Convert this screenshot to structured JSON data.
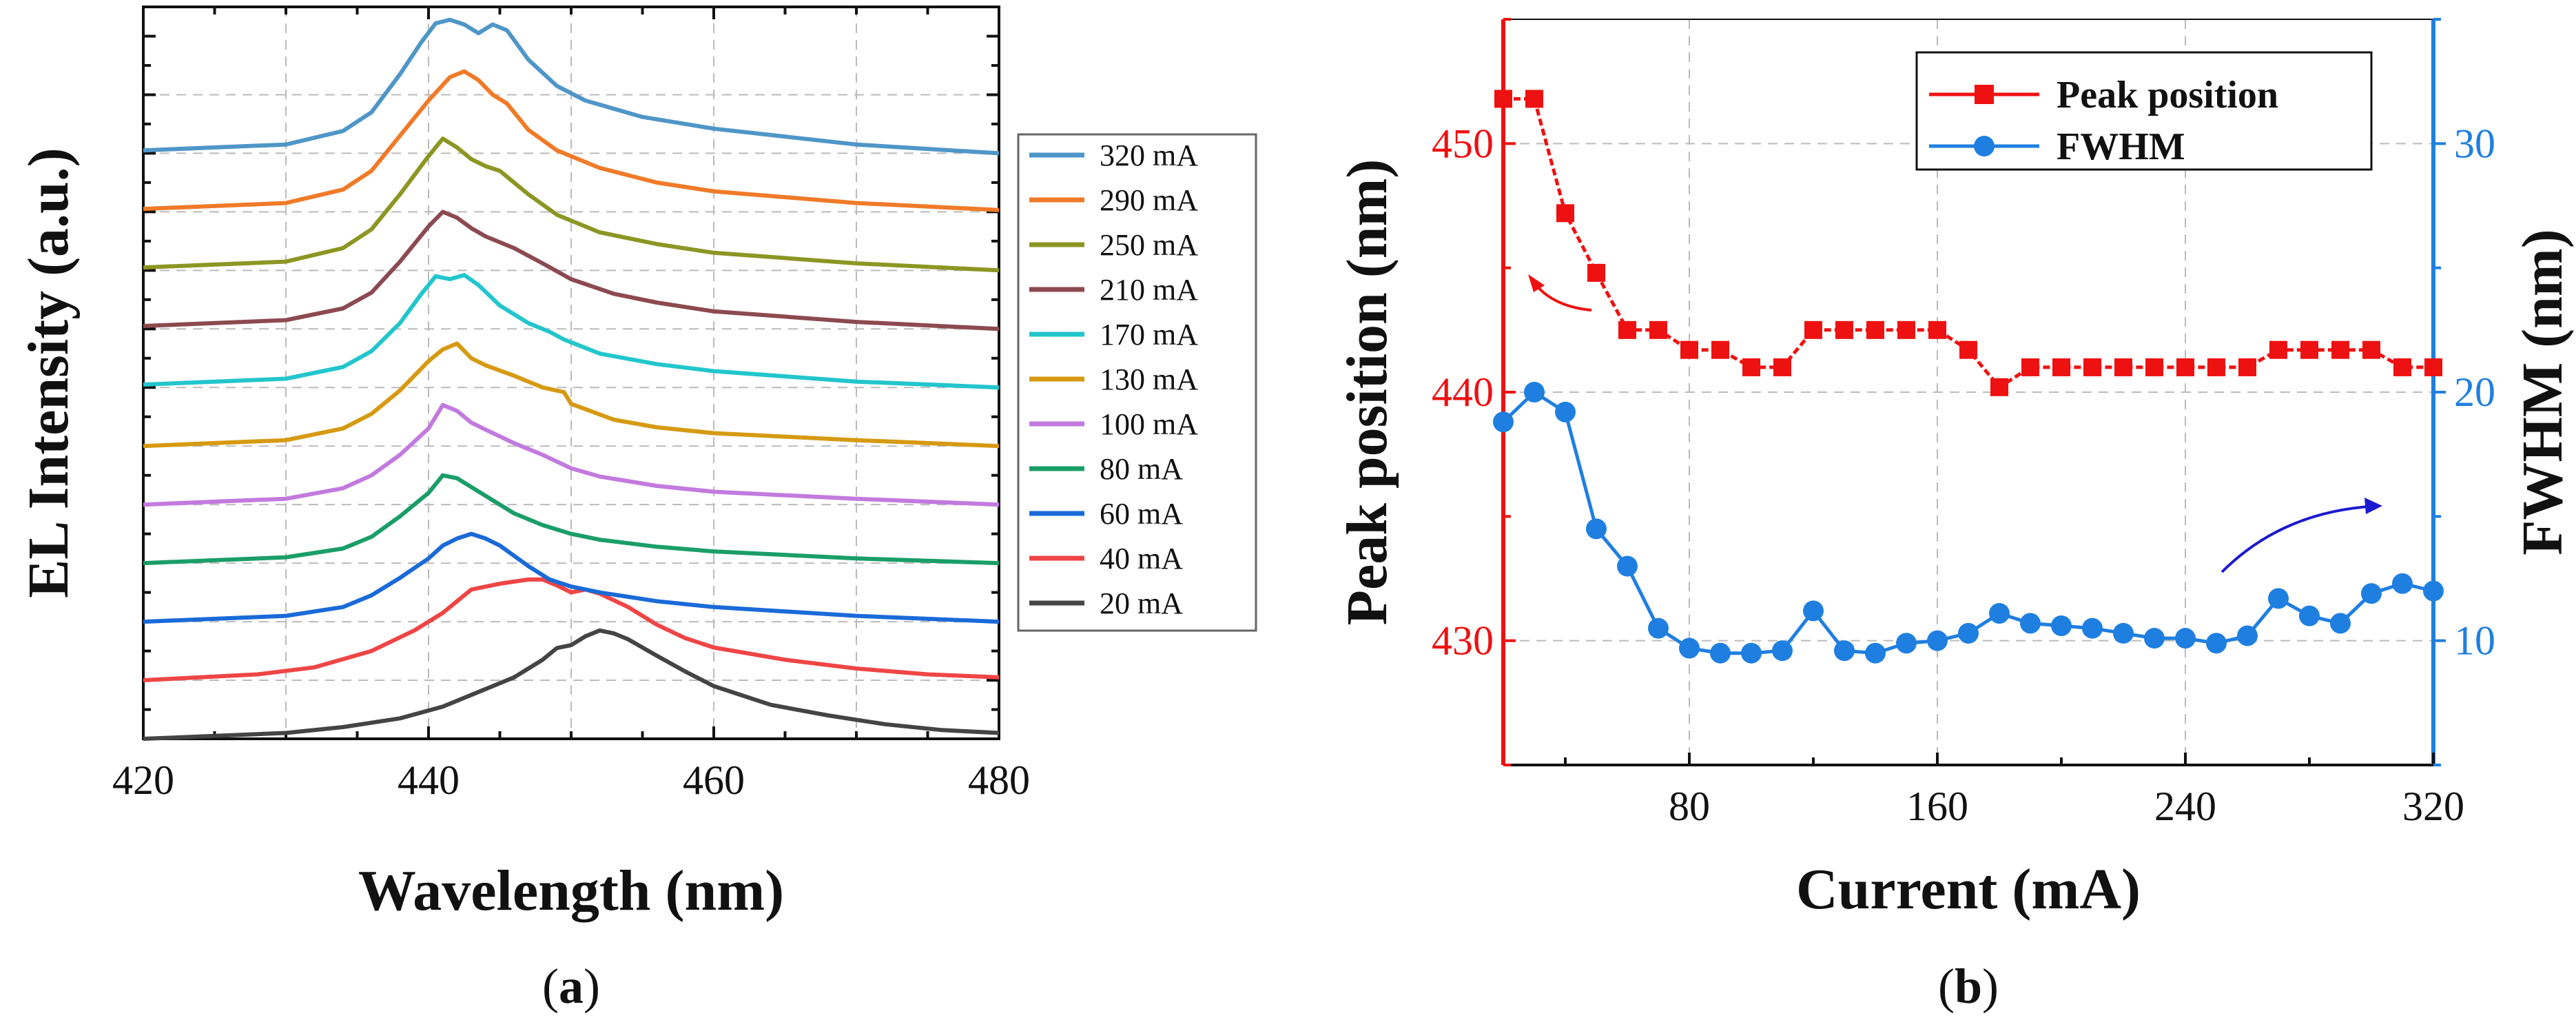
{
  "chart_data": [
    {
      "panel_label": "(a)",
      "panel_letter": "a",
      "type": "line",
      "title": "",
      "xlabel": "Wavelength (nm)",
      "ylabel": "EL Intensity (a.u.)",
      "xlim": [
        420,
        480
      ],
      "ylim": [
        0,
        12.5
      ],
      "xticks": [
        420,
        440,
        460,
        480
      ],
      "grid": true,
      "legend_position": "right",
      "series": [
        {
          "name": "320 mA",
          "color": "#4f96c8",
          "offset": 10,
          "points": [
            [
              420,
              0.05
            ],
            [
              430,
              0.15
            ],
            [
              434,
              0.38
            ],
            [
              436,
              0.7
            ],
            [
              438,
              1.35
            ],
            [
              439.5,
              1.9
            ],
            [
              440.5,
              2.22
            ],
            [
              441.5,
              2.28
            ],
            [
              442.5,
              2.2
            ],
            [
              443.5,
              2.05
            ],
            [
              444.5,
              2.2
            ],
            [
              445.5,
              2.1
            ],
            [
              447,
              1.6
            ],
            [
              449,
              1.15
            ],
            [
              451,
              0.9
            ],
            [
              455,
              0.62
            ],
            [
              460,
              0.42
            ],
            [
              470,
              0.15
            ],
            [
              480,
              0.0
            ]
          ]
        },
        {
          "name": "290 mA",
          "color": "#f07a28",
          "offset": 9,
          "points": [
            [
              420,
              0.05
            ],
            [
              430,
              0.15
            ],
            [
              434,
              0.38
            ],
            [
              436,
              0.7
            ],
            [
              438,
              1.3
            ],
            [
              440,
              1.9
            ],
            [
              441.5,
              2.3
            ],
            [
              442.5,
              2.4
            ],
            [
              443.5,
              2.25
            ],
            [
              444.5,
              2.0
            ],
            [
              445.5,
              1.85
            ],
            [
              447,
              1.4
            ],
            [
              449,
              1.05
            ],
            [
              452,
              0.75
            ],
            [
              456,
              0.5
            ],
            [
              460,
              0.35
            ],
            [
              470,
              0.15
            ],
            [
              480,
              0.03
            ]
          ]
        },
        {
          "name": "250 mA",
          "color": "#8c9623",
          "offset": 8,
          "points": [
            [
              420,
              0.05
            ],
            [
              430,
              0.15
            ],
            [
              434,
              0.38
            ],
            [
              436,
              0.7
            ],
            [
              438,
              1.3
            ],
            [
              440,
              1.95
            ],
            [
              441,
              2.25
            ],
            [
              442,
              2.1
            ],
            [
              443,
              1.9
            ],
            [
              444,
              1.78
            ],
            [
              445,
              1.7
            ],
            [
              447,
              1.3
            ],
            [
              449,
              0.95
            ],
            [
              452,
              0.65
            ],
            [
              456,
              0.45
            ],
            [
              460,
              0.3
            ],
            [
              470,
              0.12
            ],
            [
              480,
              0.0
            ]
          ]
        },
        {
          "name": "210 mA",
          "color": "#8c4a50",
          "offset": 7,
          "points": [
            [
              420,
              0.05
            ],
            [
              430,
              0.15
            ],
            [
              434,
              0.35
            ],
            [
              436,
              0.62
            ],
            [
              438,
              1.15
            ],
            [
              440,
              1.75
            ],
            [
              441,
              2.0
            ],
            [
              442,
              1.9
            ],
            [
              443,
              1.72
            ],
            [
              444,
              1.58
            ],
            [
              446,
              1.38
            ],
            [
              448,
              1.12
            ],
            [
              450,
              0.85
            ],
            [
              453,
              0.6
            ],
            [
              456,
              0.45
            ],
            [
              460,
              0.3
            ],
            [
              470,
              0.12
            ],
            [
              480,
              0.0
            ]
          ]
        },
        {
          "name": "170 mA",
          "color": "#22c6cc",
          "offset": 6,
          "points": [
            [
              420,
              0.05
            ],
            [
              430,
              0.15
            ],
            [
              434,
              0.35
            ],
            [
              436,
              0.62
            ],
            [
              438,
              1.1
            ],
            [
              439.5,
              1.6
            ],
            [
              440.5,
              1.9
            ],
            [
              441.5,
              1.85
            ],
            [
              442.5,
              1.92
            ],
            [
              443.5,
              1.75
            ],
            [
              445,
              1.4
            ],
            [
              447,
              1.1
            ],
            [
              448.5,
              0.95
            ],
            [
              449.5,
              0.82
            ],
            [
              452,
              0.58
            ],
            [
              456,
              0.4
            ],
            [
              460,
              0.28
            ],
            [
              470,
              0.1
            ],
            [
              480,
              0.0
            ]
          ]
        },
        {
          "name": "130 mA",
          "color": "#d69a12",
          "offset": 5,
          "points": [
            [
              420,
              0.0
            ],
            [
              430,
              0.1
            ],
            [
              434,
              0.3
            ],
            [
              436,
              0.55
            ],
            [
              438,
              0.95
            ],
            [
              440,
              1.45
            ],
            [
              441,
              1.65
            ],
            [
              442,
              1.75
            ],
            [
              443,
              1.5
            ],
            [
              444,
              1.38
            ],
            [
              446,
              1.2
            ],
            [
              448,
              1.0
            ],
            [
              449.5,
              0.92
            ],
            [
              450,
              0.72
            ],
            [
              453,
              0.45
            ],
            [
              456,
              0.32
            ],
            [
              460,
              0.22
            ],
            [
              470,
              0.1
            ],
            [
              480,
              0.0
            ]
          ]
        },
        {
          "name": "100 mA",
          "color": "#c27adf",
          "offset": 4,
          "points": [
            [
              420,
              0.0
            ],
            [
              430,
              0.1
            ],
            [
              434,
              0.28
            ],
            [
              436,
              0.5
            ],
            [
              438,
              0.85
            ],
            [
              440,
              1.3
            ],
            [
              441,
              1.7
            ],
            [
              442,
              1.6
            ],
            [
              443,
              1.4
            ],
            [
              444,
              1.28
            ],
            [
              446,
              1.05
            ],
            [
              448,
              0.85
            ],
            [
              450,
              0.62
            ],
            [
              452,
              0.48
            ],
            [
              456,
              0.32
            ],
            [
              460,
              0.22
            ],
            [
              470,
              0.1
            ],
            [
              480,
              0.0
            ]
          ]
        },
        {
          "name": "80 mA",
          "color": "#1a9e68",
          "offset": 3,
          "points": [
            [
              420,
              0.0
            ],
            [
              430,
              0.1
            ],
            [
              434,
              0.25
            ],
            [
              436,
              0.45
            ],
            [
              438,
              0.8
            ],
            [
              440,
              1.2
            ],
            [
              441,
              1.5
            ],
            [
              442,
              1.45
            ],
            [
              443,
              1.3
            ],
            [
              444,
              1.15
            ],
            [
              446,
              0.85
            ],
            [
              448,
              0.65
            ],
            [
              450,
              0.5
            ],
            [
              452,
              0.4
            ],
            [
              456,
              0.28
            ],
            [
              460,
              0.2
            ],
            [
              470,
              0.08
            ],
            [
              480,
              0.0
            ]
          ]
        },
        {
          "name": "60 mA",
          "color": "#1a6ad8",
          "offset": 2,
          "points": [
            [
              420,
              0.0
            ],
            [
              430,
              0.1
            ],
            [
              434,
              0.25
            ],
            [
              436,
              0.45
            ],
            [
              438,
              0.75
            ],
            [
              440,
              1.08
            ],
            [
              441,
              1.3
            ],
            [
              442,
              1.42
            ],
            [
              443,
              1.5
            ],
            [
              444,
              1.42
            ],
            [
              445,
              1.3
            ],
            [
              447,
              0.95
            ],
            [
              448.5,
              0.72
            ],
            [
              450,
              0.6
            ],
            [
              452,
              0.5
            ],
            [
              456,
              0.35
            ],
            [
              460,
              0.25
            ],
            [
              470,
              0.1
            ],
            [
              480,
              0.0
            ]
          ]
        },
        {
          "name": "40 mA",
          "color": "#ef4545",
          "offset": 1,
          "points": [
            [
              420,
              0.0
            ],
            [
              428,
              0.1
            ],
            [
              432,
              0.22
            ],
            [
              436,
              0.5
            ],
            [
              439,
              0.85
            ],
            [
              441,
              1.15
            ],
            [
              442,
              1.35
            ],
            [
              443,
              1.55
            ],
            [
              445,
              1.65
            ],
            [
              447,
              1.72
            ],
            [
              448,
              1.72
            ],
            [
              449,
              1.62
            ],
            [
              450,
              1.5
            ],
            [
              451,
              1.55
            ],
            [
              452,
              1.48
            ],
            [
              454,
              1.25
            ],
            [
              456,
              0.95
            ],
            [
              458,
              0.72
            ],
            [
              460,
              0.56
            ],
            [
              465,
              0.35
            ],
            [
              470,
              0.2
            ],
            [
              475,
              0.1
            ],
            [
              480,
              0.05
            ]
          ]
        },
        {
          "name": "20 mA",
          "color": "#444444",
          "offset": 0,
          "points": [
            [
              420,
              0.0
            ],
            [
              430,
              0.1
            ],
            [
              434,
              0.2
            ],
            [
              438,
              0.35
            ],
            [
              441,
              0.55
            ],
            [
              444,
              0.85
            ],
            [
              446,
              1.05
            ],
            [
              448,
              1.35
            ],
            [
              449,
              1.55
            ],
            [
              450,
              1.6
            ],
            [
              451,
              1.75
            ],
            [
              452,
              1.85
            ],
            [
              453,
              1.8
            ],
            [
              454,
              1.7
            ],
            [
              456,
              1.42
            ],
            [
              458,
              1.15
            ],
            [
              460,
              0.9
            ],
            [
              464,
              0.58
            ],
            [
              468,
              0.4
            ],
            [
              472,
              0.25
            ],
            [
              476,
              0.15
            ],
            [
              480,
              0.1
            ]
          ]
        }
      ]
    },
    {
      "panel_label": "(b)",
      "panel_letter": "b",
      "type": "line",
      "title": "",
      "xlabel": "Current (mA)",
      "ylabel_left": "Peak position (nm)",
      "ylabel_right": "FWHM (nm)",
      "xlim": [
        20,
        320
      ],
      "xticks": [
        80,
        160,
        240,
        320
      ],
      "ylim_left": [
        425,
        455
      ],
      "yticks_left": [
        430,
        440,
        450
      ],
      "ylim_right": [
        5,
        35
      ],
      "yticks_right": [
        10,
        20,
        30
      ],
      "grid": true,
      "legend_position": "top-right",
      "left_axis_color": "#ee1111",
      "right_axis_color": "#1f7fe0",
      "x": [
        20,
        30,
        40,
        50,
        60,
        70,
        80,
        90,
        100,
        110,
        120,
        130,
        140,
        150,
        160,
        170,
        180,
        190,
        200,
        210,
        220,
        230,
        240,
        250,
        260,
        270,
        280,
        290,
        300,
        310,
        320
      ],
      "series": [
        {
          "name": "Peak position",
          "axis": "left",
          "color": "#ee1111",
          "marker": "square",
          "values": [
            451.8,
            451.8,
            447.2,
            444.8,
            442.5,
            442.5,
            441.7,
            441.7,
            441.0,
            441.0,
            442.5,
            442.5,
            442.5,
            442.5,
            442.5,
            441.7,
            440.2,
            441.0,
            441.0,
            441.0,
            441.0,
            441.0,
            441.0,
            441.0,
            441.0,
            441.7,
            441.7,
            441.7,
            441.7,
            441.0,
            441.0
          ]
        },
        {
          "name": "FWHM",
          "axis": "right",
          "color": "#1f7fe0",
          "marker": "circle",
          "values": [
            18.8,
            20.0,
            19.2,
            14.5,
            13.0,
            10.5,
            9.7,
            9.5,
            9.5,
            9.6,
            11.2,
            9.6,
            9.5,
            9.9,
            10.0,
            10.3,
            11.1,
            10.7,
            10.6,
            10.5,
            10.3,
            10.1,
            10.1,
            9.9,
            10.2,
            11.7,
            11.0,
            10.7,
            11.9,
            12.3,
            12.0
          ]
        }
      ],
      "annotations": [
        "arrow pointing to left axis",
        "arrow pointing to right axis"
      ]
    }
  ]
}
